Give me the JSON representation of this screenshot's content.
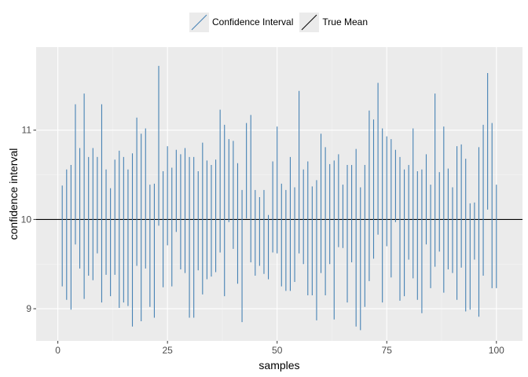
{
  "chart_data": {
    "type": "interval",
    "xlabel": "samples",
    "ylabel": "confidence interval",
    "xlim": [
      -4.95,
      105.95
    ],
    "ylim": [
      8.64,
      11.93
    ],
    "x_ticks": [
      0,
      25,
      50,
      75,
      100
    ],
    "x_tick_labels": [
      "0",
      "25",
      "50",
      "75",
      "100"
    ],
    "y_ticks": [
      9,
      10,
      11
    ],
    "y_tick_labels": [
      "9",
      "10",
      "11"
    ],
    "grid": true,
    "legend_position": "top",
    "legend": [
      {
        "label": "Confidence Interval",
        "color": "#4682b4"
      },
      {
        "label": "True Mean",
        "color": "#000000"
      }
    ],
    "true_mean": 10,
    "x": [
      1,
      2,
      3,
      4,
      5,
      6,
      7,
      8,
      9,
      10,
      11,
      12,
      13,
      14,
      15,
      16,
      17,
      18,
      19,
      20,
      21,
      22,
      23,
      24,
      25,
      26,
      27,
      28,
      29,
      30,
      31,
      32,
      33,
      34,
      35,
      36,
      37,
      38,
      39,
      40,
      41,
      42,
      43,
      44,
      45,
      46,
      47,
      48,
      49,
      50,
      51,
      52,
      53,
      54,
      55,
      56,
      57,
      58,
      59,
      60,
      61,
      62,
      63,
      64,
      65,
      66,
      67,
      68,
      69,
      70,
      71,
      72,
      73,
      74,
      75,
      76,
      77,
      78,
      79,
      80,
      81,
      82,
      83,
      84,
      85,
      86,
      87,
      88,
      89,
      90,
      91,
      92,
      93,
      94,
      95,
      96,
      97,
      98,
      99,
      100
    ],
    "lower": [
      9.25,
      9.1,
      8.99,
      9.72,
      9.45,
      9.11,
      9.37,
      9.32,
      9.62,
      9.07,
      9.38,
      9.14,
      9.38,
      9.01,
      9.07,
      9.03,
      8.8,
      9.48,
      8.86,
      9.45,
      9.02,
      8.9,
      9.93,
      9.24,
      9.71,
      9.25,
      9.86,
      9.44,
      9.4,
      8.9,
      8.9,
      9.43,
      9.16,
      9.33,
      9.36,
      9.41,
      9.63,
      9.14,
      9.97,
      9.67,
      9.28,
      8.85,
      10.01,
      9.52,
      9.37,
      9.48,
      9.39,
      9.33,
      9.63,
      9.62,
      9.25,
      9.2,
      9.2,
      9.3,
      9.62,
      9.5,
      9.15,
      9.15,
      8.87,
      9.4,
      9.15,
      9.5,
      8.88,
      9.69,
      9.68,
      9.07,
      9.52,
      8.8,
      8.76,
      9.02,
      9.31,
      9.56,
      9.83,
      9.07,
      9.7,
      9.35,
      9.97,
      9.09,
      9.14,
      9.55,
      9.34,
      9.1,
      8.95,
      9.72,
      9.23,
      9.47,
      9.64,
      9.18,
      9.44,
      9.4,
      9.1,
      9.46,
      8.97,
      8.99,
      9.55,
      8.91,
      9.37,
      10.11,
      9.23,
      9.23
    ],
    "upper": [
      10.38,
      10.56,
      10.61,
      11.29,
      10.8,
      11.41,
      10.7,
      10.8,
      10.7,
      11.29,
      10.56,
      10.35,
      10.67,
      10.77,
      10.7,
      10.56,
      10.74,
      11.14,
      10.96,
      11.02,
      10.39,
      10.4,
      11.72,
      10.54,
      10.82,
      10.58,
      10.78,
      10.73,
      10.8,
      10.7,
      10.7,
      10.54,
      10.86,
      10.66,
      10.61,
      10.67,
      11.23,
      11.06,
      10.9,
      10.88,
      10.63,
      10.33,
      11.08,
      11.17,
      10.33,
      10.25,
      10.33,
      10.05,
      10.65,
      11.04,
      10.4,
      10.33,
      10.7,
      10.36,
      11.44,
      10.56,
      10.65,
      10.37,
      10.44,
      10.96,
      10.81,
      10.62,
      10.66,
      10.73,
      10.39,
      10.61,
      10.61,
      10.79,
      10.36,
      10.61,
      11.22,
      11.12,
      11.53,
      11.02,
      10.93,
      10.9,
      10.78,
      10.7,
      10.56,
      10.61,
      11.02,
      10.54,
      10.56,
      10.73,
      10.39,
      11.41,
      10.53,
      11.04,
      10.57,
      10.36,
      10.82,
      10.84,
      10.68,
      10.18,
      10.19,
      10.81,
      11.06,
      11.64,
      11.08,
      10.39
    ]
  }
}
